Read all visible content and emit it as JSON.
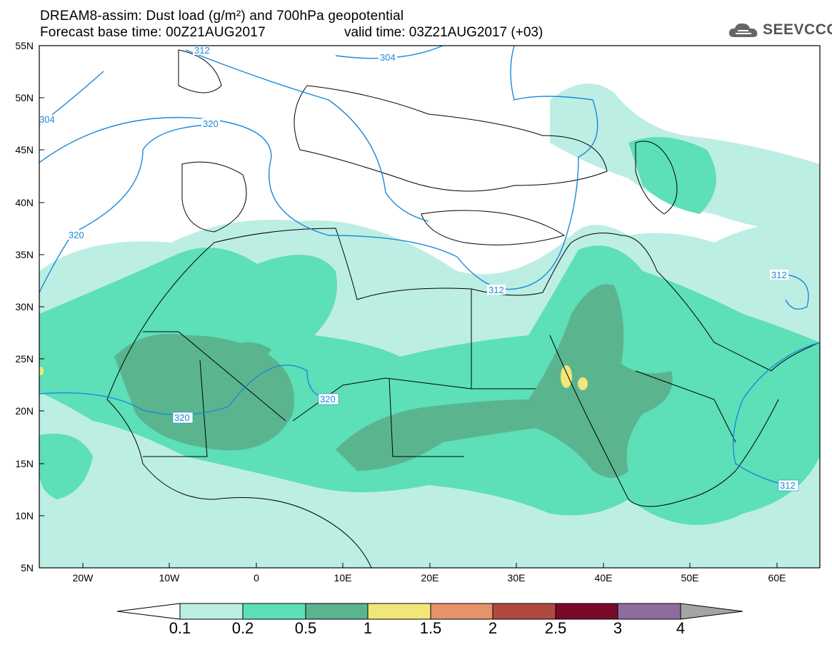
{
  "header": {
    "title_line1": "DREAM8-assim: Dust load (g/m²) and 700hPa geopotential",
    "title_line2_base": "Forecast base time: 00Z21AUG2017",
    "title_line2_valid": "valid time: 03Z21AUG2017 (+03)"
  },
  "logo": {
    "text": "SEEVCCC",
    "icon": "cloud-icon"
  },
  "map": {
    "lon_range": [
      -25,
      65
    ],
    "lat_range": [
      5,
      55
    ],
    "lat_labels": [
      "55N",
      "50N",
      "45N",
      "40N",
      "35N",
      "30N",
      "25N",
      "20N",
      "15N",
      "10N",
      "5N"
    ],
    "lon_labels": [
      "20W",
      "10W",
      "0",
      "10E",
      "20E",
      "30E",
      "40E",
      "50E",
      "60E"
    ],
    "contour_labels": [
      "312",
      "304",
      "320",
      "304",
      "320",
      "320",
      "320",
      "312",
      "312",
      "312"
    ]
  },
  "colorbar": {
    "labels": [
      "0.1",
      "0.2",
      "0.5",
      "1",
      "1.5",
      "2",
      "2.5",
      "3",
      "4"
    ],
    "colors": [
      "#ffffff",
      "#bdeee4",
      "#5ddfb8",
      "#5ab58f",
      "#f1e67a",
      "#e6926a",
      "#b04a3e",
      "#7a0a2a",
      "#8e6c9e",
      "#a4a4a4"
    ]
  }
}
